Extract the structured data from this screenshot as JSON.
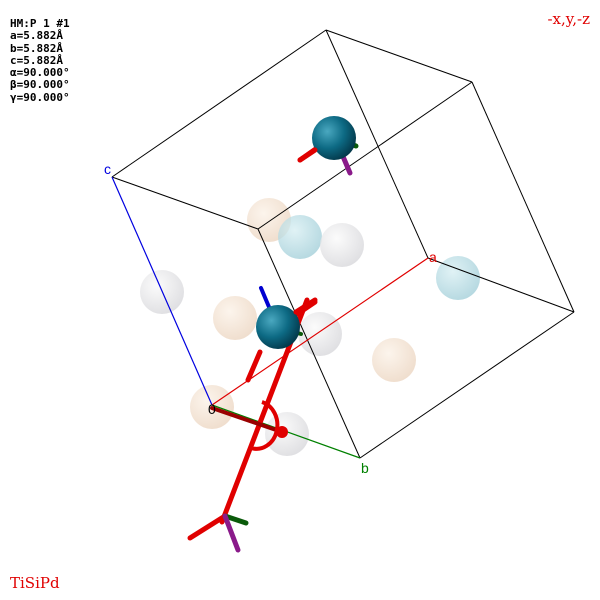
{
  "cell_info": {
    "space_group": "HM:P 1 #1",
    "a": "a=5.882Å",
    "b": "b=5.882Å",
    "c": "c=5.882Å",
    "alpha": "α=90.000°",
    "beta": "β=90.000°",
    "gamma": "γ=90.000°"
  },
  "symmetry_operation": "-x,y,-z",
  "formula": "TiSiPd",
  "axis_labels": {
    "origin": "0",
    "a": "a",
    "b": "b",
    "c": "c"
  },
  "colors": {
    "a_axis": "#e00000",
    "b_axis": "#008000",
    "c_axis": "#0000e0",
    "cell_edges": "#000000",
    "symmetry_element": "#e00000",
    "highlighted_atom": "#0a6b82",
    "ghost_atom_cream": "#f0dcc8",
    "ghost_atom_lightblue": "#a8d8e0",
    "ghost_atom_gray": "#e0e0e4"
  }
}
